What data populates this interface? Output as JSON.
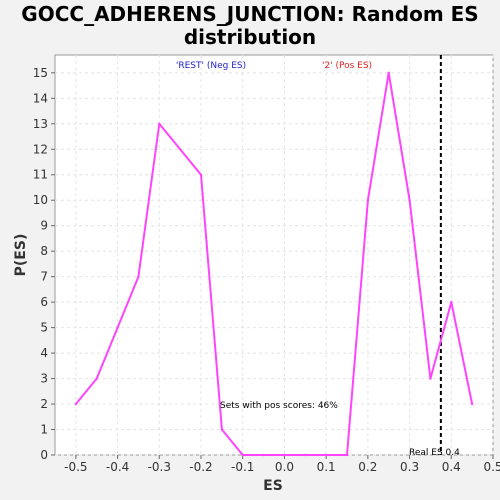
{
  "chart_data": {
    "type": "line",
    "title_line1": "GOCC_ADHERENS_JUNCTION: Random ES",
    "title_line2": "distribution",
    "xlabel": "ES",
    "ylabel": "P(ES)",
    "xlim": [
      -0.55,
      0.5
    ],
    "ylim": [
      0,
      15.7
    ],
    "xticks": [
      -0.5,
      -0.4,
      -0.3,
      -0.2,
      -0.1,
      0.0,
      0.1,
      0.2,
      0.3,
      0.4,
      0.5
    ],
    "xtick_labels": [
      "-0.5",
      "-0.4",
      "-0.3",
      "-0.2",
      "-0.1",
      "0.0",
      "0.1",
      "0.2",
      "0.3",
      "0.4",
      "0.5"
    ],
    "yticks": [
      0,
      1,
      2,
      3,
      4,
      5,
      6,
      7,
      8,
      9,
      10,
      11,
      12,
      13,
      14,
      15
    ],
    "grid": true,
    "series": [
      {
        "color": "#ff44ff",
        "x": [
          -0.5,
          -0.45,
          -0.4,
          -0.35,
          -0.3,
          -0.2,
          -0.15,
          -0.1,
          -0.05,
          0.0,
          0.05,
          0.1,
          0.15,
          0.2,
          0.25,
          0.3,
          0.35,
          0.4,
          0.45
        ],
        "y": [
          2,
          3,
          5,
          7,
          13,
          11,
          1,
          0,
          0,
          0,
          0,
          0,
          0,
          10,
          15,
          10,
          3,
          6,
          2
        ]
      }
    ],
    "real_es": 0.375,
    "legend_neg": "'REST' (Neg ES)",
    "legend_neg_color": "#2222cc",
    "legend_pos": "'2' (Pos ES)",
    "legend_pos_color": "#dd2222",
    "pos_scores_text": "Sets with pos scores: 46%",
    "real_es_text": "Real ES 0.4"
  }
}
